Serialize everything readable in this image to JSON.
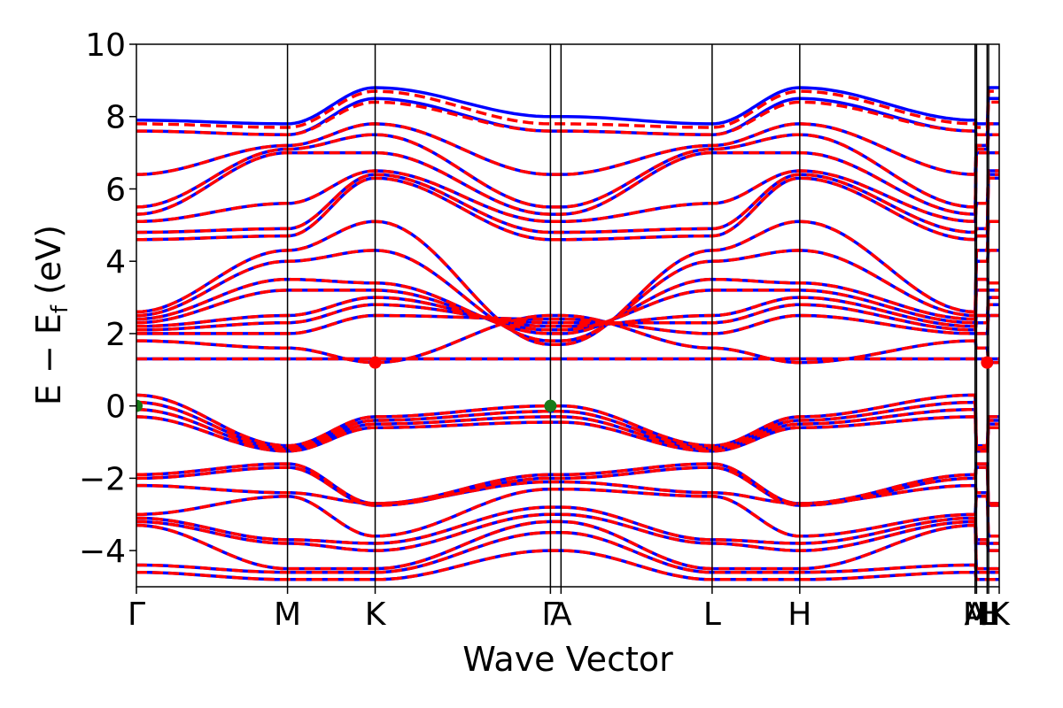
{
  "chart_data": {
    "type": "line",
    "title": "",
    "xlabel": "Wave Vector",
    "ylabel": "E − E",
    "ylabel_sub": "f",
    "ylabel_unit": " (eV)",
    "ylim": [
      -5,
      10
    ],
    "yticks": [
      -4,
      -2,
      0,
      2,
      4,
      6,
      8,
      10
    ],
    "ytick_labels": [
      "−4",
      "−2",
      "0",
      "2",
      "4",
      "6",
      "8",
      "10"
    ],
    "xlim": [
      0,
      5.71
    ],
    "kpoints": [
      {
        "label": "Γ",
        "x": 0.0
      },
      {
        "label": "M",
        "x": 1.0
      },
      {
        "label": "K",
        "x": 1.58
      },
      {
        "label": "Γ",
        "x": 2.74
      },
      {
        "label": "A",
        "x": 2.81
      },
      {
        "label": "L",
        "x": 3.81
      },
      {
        "label": "H",
        "x": 4.39
      },
      {
        "label": "A",
        "x": 5.55
      },
      {
        "label": "M",
        "x": 5.56
      },
      {
        "label": "L",
        "x": 5.63
      },
      {
        "label": "H",
        "x": 5.64
      },
      {
        "label": "K",
        "x": 5.71
      }
    ],
    "grid": false,
    "legend": "none",
    "colors": {
      "spin_up": "#0000ff",
      "spin_down": "#ff0000",
      "band_edge": "#1a7a1a"
    },
    "series": [
      {
        "style": "solid",
        "color": "#0000ff",
        "bands": [
          {
            "start": 0.3,
            "m": -1.1,
            "k": -0.3,
            "g": 0.0
          },
          {
            "start": 0.1,
            "m": -1.15,
            "k": -0.4,
            "g": -0.15
          },
          {
            "start": -0.1,
            "m": -1.2,
            "k": -0.5,
            "g": -0.3
          },
          {
            "start": -0.3,
            "m": -1.25,
            "k": -0.6,
            "g": -0.45
          },
          {
            "start": -1.9,
            "m": -1.6,
            "k": -2.7,
            "g": -1.9
          },
          {
            "start": -2.0,
            "m": -1.7,
            "k": -2.75,
            "g": -2.0
          },
          {
            "start": -2.2,
            "m": -2.4,
            "k": -2.7,
            "g": -2.1
          },
          {
            "start": -3.0,
            "m": -2.5,
            "k": -3.6,
            "g": -2.3
          },
          {
            "start": -3.1,
            "m": -3.7,
            "k": -3.8,
            "g": -2.8
          },
          {
            "start": -3.2,
            "m": -3.8,
            "k": -4.0,
            "g": -3.0
          },
          {
            "start": -3.3,
            "m": -4.5,
            "k": -4.5,
            "g": -3.2
          },
          {
            "start": -4.4,
            "m": -4.6,
            "k": -4.6,
            "g": -3.5
          },
          {
            "start": -4.6,
            "m": -4.8,
            "k": -4.8,
            "g": -4.0
          },
          {
            "start": 1.3,
            "m": 1.3,
            "k": 1.3,
            "g": 1.3
          },
          {
            "start": 1.8,
            "m": 1.6,
            "k": 1.2,
            "g": 2.5
          },
          {
            "start": 2.0,
            "m": 2.0,
            "k": 2.5,
            "g": 2.4
          },
          {
            "start": 2.1,
            "m": 2.3,
            "k": 2.8,
            "g": 2.3
          },
          {
            "start": 2.2,
            "m": 2.5,
            "k": 3.0,
            "g": 2.2
          },
          {
            "start": 2.3,
            "m": 3.2,
            "k": 3.2,
            "g": 2.1
          },
          {
            "start": 2.4,
            "m": 3.5,
            "k": 3.4,
            "g": 2.0
          },
          {
            "start": 2.5,
            "m": 4.0,
            "k": 4.3,
            "g": 1.8
          },
          {
            "start": 2.6,
            "m": 4.3,
            "k": 5.1,
            "g": 1.7
          },
          {
            "start": 4.6,
            "m": 4.7,
            "k": 6.3,
            "g": 4.6
          },
          {
            "start": 4.8,
            "m": 4.9,
            "k": 6.4,
            "g": 4.8
          },
          {
            "start": 5.1,
            "m": 5.6,
            "k": 6.5,
            "g": 5.1
          },
          {
            "start": 5.3,
            "m": 7.0,
            "k": 7.0,
            "g": 5.3
          },
          {
            "start": 5.5,
            "m": 7.1,
            "k": 7.5,
            "g": 5.5
          },
          {
            "start": 6.4,
            "m": 7.2,
            "k": 7.8,
            "g": 6.4
          },
          {
            "start": 7.6,
            "m": 7.5,
            "k": 8.5,
            "g": 7.6
          },
          {
            "start": 7.9,
            "m": 7.8,
            "k": 8.8,
            "g": 8.0
          }
        ]
      },
      {
        "style": "dashed",
        "color": "#ff0000",
        "bands": [
          {
            "start": 0.3,
            "m": -1.1,
            "k": -0.3,
            "g": 0.0
          },
          {
            "start": 0.1,
            "m": -1.15,
            "k": -0.4,
            "g": -0.15
          },
          {
            "start": -0.1,
            "m": -1.2,
            "k": -0.5,
            "g": -0.3
          },
          {
            "start": -0.3,
            "m": -1.25,
            "k": -0.6,
            "g": -0.45
          },
          {
            "start": -1.9,
            "m": -1.6,
            "k": -2.7,
            "g": -1.9
          },
          {
            "start": -2.0,
            "m": -1.7,
            "k": -2.75,
            "g": -2.0
          },
          {
            "start": -2.2,
            "m": -2.4,
            "k": -2.7,
            "g": -2.1
          },
          {
            "start": -3.0,
            "m": -2.5,
            "k": -3.6,
            "g": -2.3
          },
          {
            "start": -3.1,
            "m": -3.7,
            "k": -3.8,
            "g": -2.8
          },
          {
            "start": -3.2,
            "m": -3.8,
            "k": -4.0,
            "g": -3.0
          },
          {
            "start": -3.3,
            "m": -4.5,
            "k": -4.5,
            "g": -3.2
          },
          {
            "start": -4.4,
            "m": -4.6,
            "k": -4.6,
            "g": -3.5
          },
          {
            "start": -4.6,
            "m": -4.8,
            "k": -4.8,
            "g": -4.0
          },
          {
            "start": 1.3,
            "m": 1.3,
            "k": 1.3,
            "g": 1.3
          },
          {
            "start": 1.8,
            "m": 1.6,
            "k": 1.2,
            "g": 2.5
          },
          {
            "start": 2.0,
            "m": 2.0,
            "k": 2.5,
            "g": 2.4
          },
          {
            "start": 2.1,
            "m": 2.3,
            "k": 2.8,
            "g": 2.3
          },
          {
            "start": 2.2,
            "m": 2.5,
            "k": 3.0,
            "g": 2.2
          },
          {
            "start": 2.3,
            "m": 3.2,
            "k": 3.2,
            "g": 2.1
          },
          {
            "start": 2.4,
            "m": 3.5,
            "k": 3.4,
            "g": 2.0
          },
          {
            "start": 2.5,
            "m": 4.0,
            "k": 4.3,
            "g": 1.8
          },
          {
            "start": 2.6,
            "m": 4.3,
            "k": 5.1,
            "g": 1.7
          },
          {
            "start": 4.6,
            "m": 4.7,
            "k": 6.3,
            "g": 4.6
          },
          {
            "start": 4.8,
            "m": 4.9,
            "k": 6.4,
            "g": 4.8
          },
          {
            "start": 5.1,
            "m": 5.6,
            "k": 6.5,
            "g": 5.1
          },
          {
            "start": 5.3,
            "m": 7.0,
            "k": 7.0,
            "g": 5.3
          },
          {
            "start": 5.5,
            "m": 7.1,
            "k": 7.5,
            "g": 5.5
          },
          {
            "start": 6.4,
            "m": 7.2,
            "k": 7.8,
            "g": 6.4
          },
          {
            "start": 7.6,
            "m": 7.5,
            "k": 8.4,
            "g": 7.6
          },
          {
            "start": 7.8,
            "m": 7.7,
            "k": 8.7,
            "g": 7.8
          }
        ]
      }
    ],
    "markers": [
      {
        "x": 0.0,
        "y": 0.0,
        "color": "#1a7a1a"
      },
      {
        "x": 2.74,
        "y": 0.0,
        "color": "#1a7a1a"
      },
      {
        "x": 1.58,
        "y": 1.2,
        "color": "#ff0000"
      },
      {
        "x": 5.63,
        "y": 1.2,
        "color": "#ff0000"
      }
    ]
  }
}
